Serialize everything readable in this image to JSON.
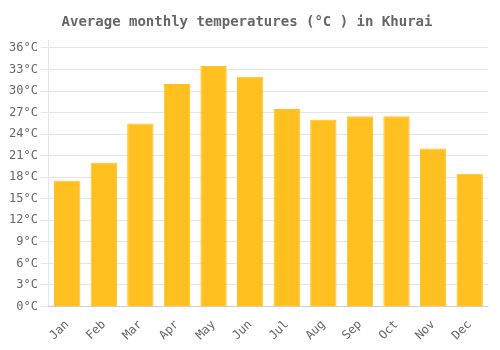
{
  "chart_data": {
    "type": "bar",
    "title": "Average monthly temperatures (°C ) in Khurai",
    "categories": [
      "Jan",
      "Feb",
      "Mar",
      "Apr",
      "May",
      "Jun",
      "Jul",
      "Aug",
      "Sep",
      "Oct",
      "Nov",
      "Dec"
    ],
    "values": [
      17.5,
      20.0,
      25.5,
      31.0,
      33.5,
      32.0,
      27.5,
      26.0,
      26.5,
      26.5,
      22.0,
      18.5
    ],
    "color": "#FFC020",
    "ylim": [
      0,
      37
    ],
    "yticks": [
      {
        "value": 0,
        "label": "0°C"
      },
      {
        "value": 3,
        "label": "3°C"
      },
      {
        "value": 6,
        "label": "6°C"
      },
      {
        "value": 9,
        "label": "9°C"
      },
      {
        "value": 12,
        "label": "12°C"
      },
      {
        "value": 15,
        "label": "15°C"
      },
      {
        "value": 18,
        "label": "18°C"
      },
      {
        "value": 21,
        "label": "21°C"
      },
      {
        "value": 24,
        "label": "24°C"
      },
      {
        "value": 27,
        "label": "27°C"
      },
      {
        "value": 30,
        "label": "30°C"
      },
      {
        "value": 33,
        "label": "33°C"
      },
      {
        "value": 36,
        "label": "36°C"
      }
    ],
    "grid": true
  }
}
